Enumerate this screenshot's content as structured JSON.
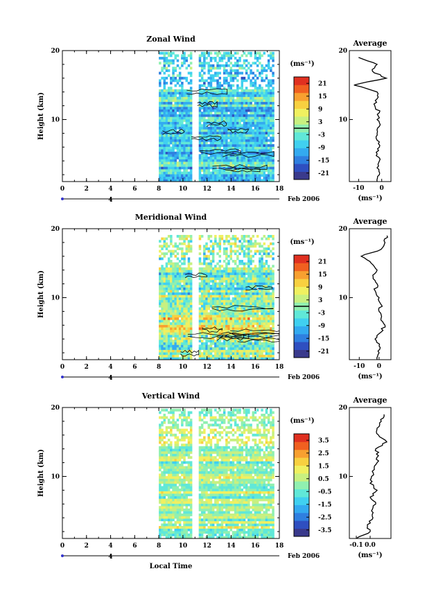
{
  "chart_data": [
    {
      "type": "heatmap",
      "title": "Zonal Wind",
      "xlabel": "",
      "ylabel": "Height (km)",
      "xlim": [
        0,
        18
      ],
      "ylim": [
        1,
        20
      ],
      "x_ticks": [
        "0",
        "2",
        "4",
        "6",
        "8",
        "10",
        "12",
        "14",
        "16",
        "18"
      ],
      "y_ticks": [
        "10",
        "20"
      ],
      "date_axis": {
        "day_label": "4",
        "month_label": "Feb 2006"
      },
      "data_start_hour": 8,
      "data_gap_hours": [
        10.9,
        11.3
      ],
      "data_top_km": 19.5,
      "colorbar": {
        "unit": "(ms⁻¹)",
        "range": [
          -24,
          24
        ],
        "tick_values": [
          21,
          15,
          9,
          3,
          -3,
          -9,
          -15,
          -21
        ],
        "tick_labels": [
          "21",
          "15",
          "9",
          "3",
          "-3",
          "-9",
          "-15",
          "-21"
        ],
        "zero_line": true,
        "colors": [
          "#3a3a8c",
          "#2f4fc0",
          "#2f7fe0",
          "#33aaf0",
          "#40d0f0",
          "#60e8d8",
          "#90f0b0",
          "#c8f080",
          "#f0f060",
          "#f8d040",
          "#f8a030",
          "#f06020",
          "#e03020"
        ]
      },
      "profile": {
        "title": "Average",
        "xlabel": "(ms⁻¹)",
        "xlim": [
          -14,
          4
        ],
        "x_ticks": [
          "-10",
          "0"
        ],
        "y_ticks": [
          "10",
          "20"
        ],
        "heights": [
          1,
          2,
          3,
          4,
          5,
          6,
          7,
          8,
          9,
          10,
          11,
          12,
          13,
          14,
          15,
          16,
          17,
          18,
          19
        ],
        "values": [
          -2,
          -1,
          -2,
          -1,
          -2,
          -1,
          -2,
          -2,
          -1,
          -2,
          -1,
          -3,
          -2,
          -2,
          -12,
          2,
          -4,
          -2,
          -10
        ]
      }
    },
    {
      "type": "heatmap",
      "title": "Meridional Wind",
      "xlabel": "",
      "ylabel": "Height (km)",
      "xlim": [
        0,
        18
      ],
      "ylim": [
        1,
        20
      ],
      "x_ticks": [
        "0",
        "2",
        "4",
        "6",
        "8",
        "10",
        "12",
        "14",
        "16",
        "18"
      ],
      "y_ticks": [
        "10",
        "20"
      ],
      "date_axis": {
        "day_label": "4",
        "month_label": "Feb 2006"
      },
      "data_start_hour": 8,
      "data_gap_hours": [
        10.8,
        11.3
      ],
      "data_top_km": 19.0,
      "colorbar": {
        "unit": "(ms⁻¹)",
        "range": [
          -24,
          24
        ],
        "tick_values": [
          21,
          15,
          9,
          3,
          -3,
          -9,
          -15,
          -21
        ],
        "tick_labels": [
          "21",
          "15",
          "9",
          "3",
          "-3",
          "-9",
          "-15",
          "-21"
        ],
        "zero_line": true,
        "colors": [
          "#3a3a8c",
          "#2f4fc0",
          "#2f7fe0",
          "#33aaf0",
          "#40d0f0",
          "#60e8d8",
          "#90f0b0",
          "#c8f080",
          "#f0f060",
          "#f8d040",
          "#f8a030",
          "#f06020",
          "#e03020"
        ]
      },
      "profile": {
        "title": "Average",
        "xlabel": "(ms⁻¹)",
        "xlim": [
          -15,
          6
        ],
        "x_ticks": [
          "-10",
          "0"
        ],
        "y_ticks": [
          "10",
          "20"
        ],
        "heights": [
          1,
          2,
          3,
          4,
          5,
          6,
          7,
          8,
          9,
          10,
          11,
          12,
          13,
          14,
          15,
          16,
          17,
          18,
          19
        ],
        "values": [
          -1,
          0,
          0,
          -2,
          1,
          3,
          1,
          0,
          1,
          0,
          -2,
          -1,
          -3,
          -1,
          -4,
          -9,
          1,
          3,
          4
        ]
      }
    },
    {
      "type": "heatmap",
      "title": "Vertical Wind",
      "xlabel": "Local Time",
      "ylabel": "Height (km)",
      "xlim": [
        0,
        18
      ],
      "ylim": [
        1,
        20
      ],
      "x_ticks": [
        "0",
        "2",
        "4",
        "6",
        "8",
        "10",
        "12",
        "14",
        "16",
        "18"
      ],
      "y_ticks": [
        "10",
        "20"
      ],
      "date_axis": {
        "day_label": "4",
        "month_label": "Feb 2006"
      },
      "data_start_hour": 8,
      "data_gap_hours": [
        10.9,
        11.3
      ],
      "data_top_km": 19.5,
      "colorbar": {
        "unit": "(ms⁻¹)",
        "range": [
          -4,
          4
        ],
        "tick_values": [
          3.5,
          2.5,
          1.5,
          0.5,
          -0.5,
          -1.5,
          -2.5,
          -3.5
        ],
        "tick_labels": [
          "3.5",
          "2.5",
          "1.5",
          "0.5",
          "-0.5",
          "-1.5",
          "-2.5",
          "-3.5"
        ],
        "zero_line": false,
        "colors": [
          "#3a3a8c",
          "#2f4fc0",
          "#2f7fe0",
          "#33aaf0",
          "#40d0f0",
          "#60e8d8",
          "#90f0b0",
          "#c8f080",
          "#f0f060",
          "#f8d040",
          "#f8a030",
          "#f06020",
          "#e03020"
        ]
      },
      "profile": {
        "title": "Average",
        "xlabel": "(ms⁻¹)",
        "xlim": [
          -0.15,
          0.15
        ],
        "x_ticks": [
          "-0.1",
          "0.0"
        ],
        "y_ticks": [
          "10",
          "20"
        ],
        "heights": [
          1,
          2,
          3,
          4,
          5,
          6,
          7,
          8,
          9,
          10,
          11,
          12,
          13,
          14,
          15,
          16,
          17,
          18,
          19
        ],
        "values": [
          -0.1,
          0.0,
          -0.02,
          0.02,
          0.01,
          0.04,
          0.0,
          0.05,
          0.0,
          0.01,
          0.03,
          0.05,
          0.06,
          0.04,
          0.12,
          0.06,
          0.05,
          0.08,
          0.1
        ]
      }
    }
  ]
}
